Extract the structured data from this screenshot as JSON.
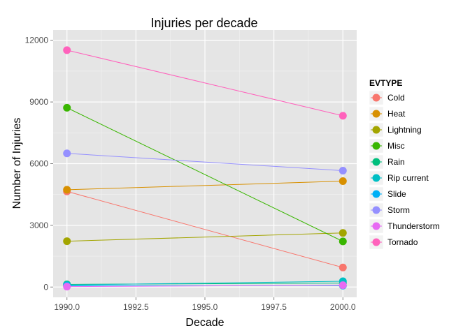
{
  "chart_data": {
    "type": "line",
    "title": "Injuries per decade",
    "xlabel": "Decade",
    "ylabel": "Number of Injuries",
    "xlim": [
      1989.5,
      2000.5
    ],
    "ylim": [
      -500,
      12500
    ],
    "xticks": [
      1990,
      1992.5,
      1995,
      1997.5,
      2000
    ],
    "xtick_labels": [
      "1990.0",
      "1992.5",
      "1995.0",
      "1997.5",
      "2000.0"
    ],
    "yticks": [
      0,
      3000,
      6000,
      9000,
      12000
    ],
    "ytick_labels": [
      "0",
      "3000",
      "6000",
      "9000",
      "12000"
    ],
    "grid": true,
    "legend": {
      "title": "EVTYPE",
      "position": "right"
    },
    "x": [
      1990,
      2000
    ],
    "series": [
      {
        "name": "Cold",
        "color": "#F8766D",
        "values": [
          4650,
          950
        ]
      },
      {
        "name": "Heat",
        "color": "#D89000",
        "values": [
          4730,
          5150
        ]
      },
      {
        "name": "Lightning",
        "color": "#A3A500",
        "values": [
          2230,
          2630
        ]
      },
      {
        "name": "Misc",
        "color": "#39B600",
        "values": [
          8720,
          2220
        ]
      },
      {
        "name": "Rain",
        "color": "#00BF7D",
        "values": [
          130,
          190
        ]
      },
      {
        "name": "Rip current",
        "color": "#00BFC4",
        "values": [
          100,
          280
        ]
      },
      {
        "name": "Slide",
        "color": "#00B0F6",
        "values": [
          60,
          70
        ]
      },
      {
        "name": "Storm",
        "color": "#9590FF",
        "values": [
          6500,
          5660
        ]
      },
      {
        "name": "Thunderstorm",
        "color": "#E76BF3",
        "values": [
          20,
          90
        ]
      },
      {
        "name": "Tornado",
        "color": "#FF62BC",
        "values": [
          11520,
          8330
        ]
      }
    ]
  }
}
